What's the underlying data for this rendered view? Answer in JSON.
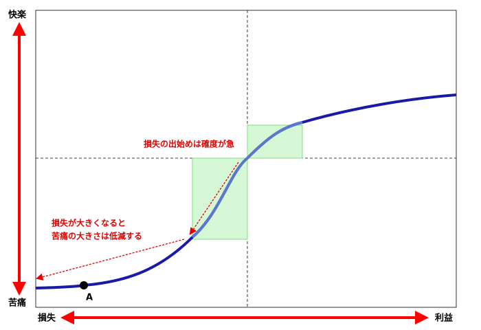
{
  "axes": {
    "top": "快楽",
    "bottom": "苦痛",
    "left": "損失",
    "right": "利益"
  },
  "point": {
    "label": "A"
  },
  "annotations": [
    {
      "lines": [
        "損失の出始めは確度が急"
      ]
    },
    {
      "lines": [
        "損失が大きくなると",
        "苦痛の大きさは低減する"
      ]
    }
  ]
}
